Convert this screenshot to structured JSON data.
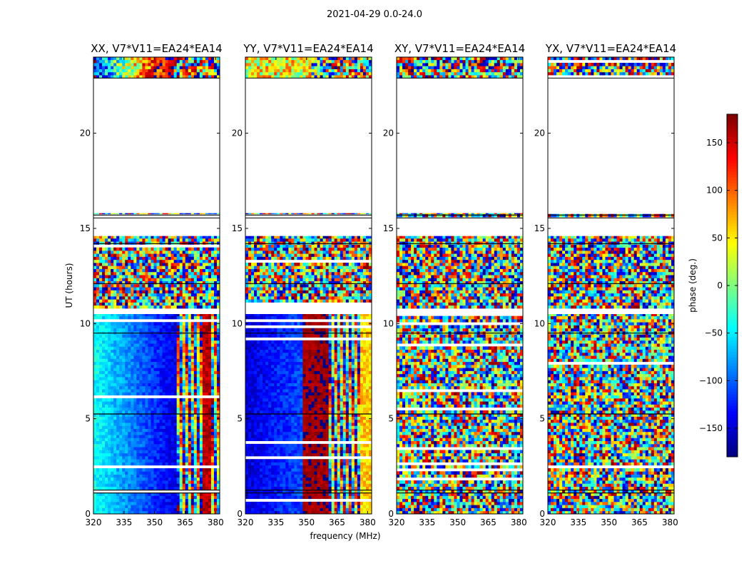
{
  "figure": {
    "title": "2021-04-29 0.0-24.0"
  },
  "chart_data": {
    "type": "heatmap",
    "title": "2021-04-29 0.0-24.0",
    "xlabel": "frequency (MHz)",
    "ylabel": "UT (hours)",
    "xlim": [
      320,
      382
    ],
    "ylim": [
      0,
      24
    ],
    "xticks": [
      320,
      335,
      350,
      365,
      380
    ],
    "yticks": [
      0,
      5,
      10,
      15,
      20
    ],
    "panels": [
      {
        "title": "XX, V7*V11=EA24*EA14",
        "pattern": "xx"
      },
      {
        "title": "YY, V7*V11=EA24*EA14",
        "pattern": "yy"
      },
      {
        "title": "XY, V7*V11=EA24*EA14",
        "pattern": "cross"
      },
      {
        "title": "YX, V7*V11=EA24*EA14",
        "pattern": "cross"
      }
    ],
    "data_blocks_ut": [
      {
        "start": 0.0,
        "end": 10.5,
        "quality": "good"
      },
      {
        "start": 10.8,
        "end": 14.6,
        "quality": "noisy"
      },
      {
        "start": 15.6,
        "end": 15.8,
        "quality": "noisy"
      },
      {
        "start": 22.9,
        "end": 24.0,
        "quality": "partial"
      }
    ],
    "colorbar": {
      "label": "phase (deg.)",
      "range": [
        -180,
        180
      ],
      "ticks": [
        -150,
        -100,
        -50,
        0,
        50,
        100,
        150
      ],
      "colormap": "jet"
    }
  }
}
